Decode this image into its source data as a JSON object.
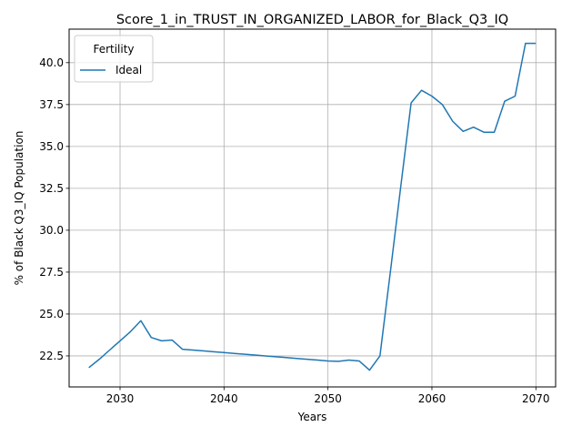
{
  "chart_data": {
    "type": "line",
    "title": "Score_1_in_TRUST_IN_ORGANIZED_LABOR_for_Black_Q3_IQ",
    "xlabel": "Years",
    "ylabel": "% of Black Q3_IQ Population",
    "xlim": [
      2025.1,
      2071.9
    ],
    "ylim": [
      20.65,
      42.0
    ],
    "xticks": [
      2030,
      2040,
      2050,
      2060,
      2070
    ],
    "yticks": [
      22.5,
      25.0,
      27.5,
      30.0,
      32.5,
      35.0,
      37.5,
      40.0
    ],
    "xtick_labels": [
      "2030",
      "2040",
      "2050",
      "2060",
      "2070"
    ],
    "ytick_labels": [
      "22.5",
      "25.0",
      "27.5",
      "30.0",
      "32.5",
      "35.0",
      "37.5",
      "40.0"
    ],
    "grid": true,
    "legend": {
      "title": "Fertility",
      "position": "top-left"
    },
    "series": [
      {
        "name": "Ideal",
        "color": "#1f77b4",
        "x": [
          2027,
          2028,
          2029,
          2030,
          2031,
          2032,
          2033,
          2034,
          2035,
          2036,
          2037,
          2038,
          2039,
          2040,
          2041,
          2042,
          2043,
          2044,
          2045,
          2046,
          2047,
          2048,
          2049,
          2050,
          2051,
          2052,
          2053,
          2054,
          2055,
          2056,
          2057,
          2058,
          2059,
          2060,
          2061,
          2062,
          2063,
          2064,
          2065,
          2066,
          2067,
          2068,
          2069,
          2070
        ],
        "y": [
          21.8,
          22.3,
          22.85,
          23.4,
          23.95,
          24.6,
          23.6,
          23.4,
          23.45,
          22.9,
          22.85,
          22.8,
          22.75,
          22.7,
          22.65,
          22.6,
          22.55,
          22.5,
          22.45,
          22.4,
          22.35,
          22.3,
          22.25,
          22.2,
          22.18,
          22.25,
          22.2,
          21.65,
          22.5,
          27.5,
          32.6,
          37.6,
          38.35,
          38.0,
          37.5,
          36.5,
          35.9,
          36.15,
          35.85,
          35.85,
          37.7,
          38.0,
          41.15,
          41.15
        ]
      }
    ]
  }
}
